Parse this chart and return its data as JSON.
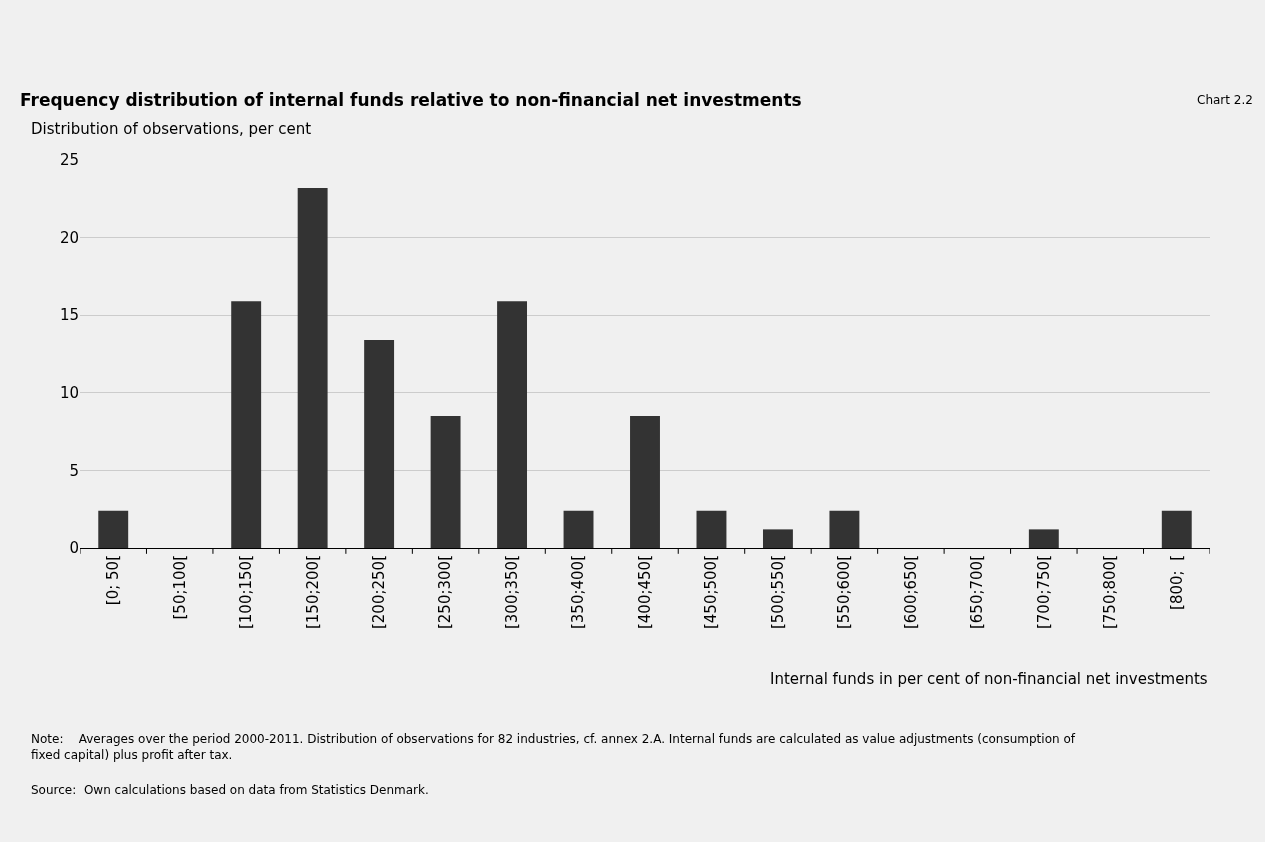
{
  "chart_data": {
    "type": "bar",
    "title": "Frequency distribution of internal funds relative to non-financial net investments",
    "ylabel": "Distribution of observations, per cent",
    "xlabel": "Internal funds in per cent of non-financial net investments",
    "categories": [
      "[0; 50[",
      "[50;100[",
      "[100;150[",
      "[150;200[",
      "[200;250[",
      "[250;300[",
      "[300;350[",
      "[350;400[",
      "[400;450[",
      "[450;500[",
      "[500;550[",
      "[550;600[",
      "[600;650[",
      "[650;700[",
      "[700;750[",
      "[750;800[",
      "[800;  ["
    ],
    "values": [
      2.4,
      0,
      15.9,
      23.2,
      13.4,
      8.5,
      15.9,
      2.4,
      8.5,
      2.4,
      1.2,
      2.4,
      0,
      0,
      1.2,
      0,
      2.4
    ],
    "color": "#333333",
    "ylim": [
      0,
      25
    ],
    "yticks": [
      0,
      5,
      10,
      15,
      20,
      25
    ],
    "grid": "y",
    "legend": false,
    "annotations": [
      "Chart 2.2",
      "Note:    Averages over the period 2000-2011. Distribution of observations for 82 industries, cf. annex 2.A. Internal funds are calculated as value adjustments (consumption of fixed capital) plus profit after tax.",
      "Source:  Own calculations based on data from Statistics Denmark."
    ]
  }
}
